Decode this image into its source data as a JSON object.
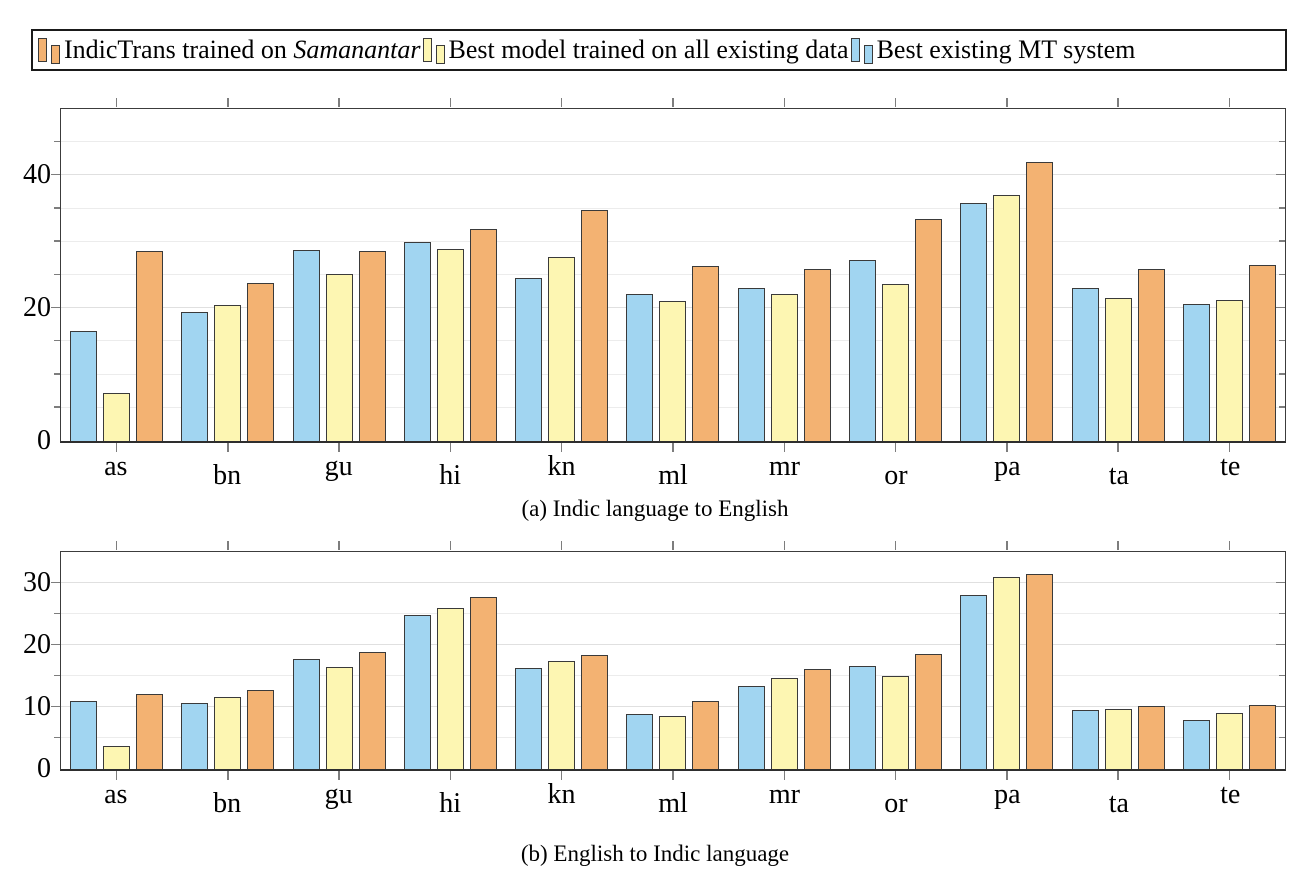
{
  "figure": {
    "legend": {
      "items": [
        {
          "label_prefix": "IndicTrans trained on ",
          "label_italic": "Samanantar",
          "color_key": "indictrans"
        },
        {
          "label": "Best model trained on all existing data",
          "color_key": "best_existing_data"
        },
        {
          "label": "Best existing MT system",
          "color_key": "best_mt"
        }
      ]
    }
  },
  "colors": {
    "indictrans": "#F3B272",
    "best_existing_data": "#FDF6B2",
    "best_mt": "#A1D5F1",
    "bar_border": "#3a3a3a",
    "grid_minor": "#ececec",
    "grid_major": "#e0e0e0",
    "frame": "#3c3c3c"
  },
  "chart_data": [
    {
      "type": "bar",
      "caption": "(a) Indic language to English",
      "categories": [
        "as",
        "bn",
        "gu",
        "hi",
        "kn",
        "ml",
        "mr",
        "or",
        "pa",
        "ta",
        "te"
      ],
      "series": [
        {
          "name": "Best existing MT system",
          "color_key": "best_mt",
          "values": [
            16.6,
            19.4,
            28.7,
            30.0,
            24.5,
            22.2,
            23.0,
            27.3,
            35.8,
            23.1,
            20.7
          ]
        },
        {
          "name": "Best model trained on all existing data",
          "color_key": "best_existing_data",
          "values": [
            7.3,
            20.5,
            25.1,
            28.9,
            27.7,
            21.1,
            22.1,
            23.6,
            37.0,
            21.6,
            21.3
          ]
        },
        {
          "name": "IndicTrans trained on Samanantar",
          "color_key": "indictrans",
          "values": [
            28.6,
            23.8,
            28.6,
            31.9,
            34.8,
            26.4,
            25.9,
            33.4,
            42.0,
            25.9,
            26.5
          ]
        }
      ],
      "ylabel": "",
      "xlabel": "",
      "ylim": [
        0,
        50
      ],
      "ytick_major": [
        0,
        20,
        40
      ],
      "minor_step": 5,
      "grid": true,
      "legend_position": "top"
    },
    {
      "type": "bar",
      "caption": "(b) English to Indic language",
      "categories": [
        "as",
        "bn",
        "gu",
        "hi",
        "kn",
        "ml",
        "mr",
        "or",
        "pa",
        "ta",
        "te"
      ],
      "series": [
        {
          "name": "Best existing MT system",
          "color_key": "best_mt",
          "values": [
            10.9,
            10.6,
            17.8,
            24.9,
            16.3,
            8.8,
            13.4,
            16.6,
            28.1,
            9.5,
            7.9
          ]
        },
        {
          "name": "Best model trained on all existing data",
          "color_key": "best_existing_data",
          "values": [
            3.7,
            11.6,
            16.5,
            26.0,
            17.5,
            8.6,
            14.6,
            15.0,
            30.9,
            9.6,
            9.0
          ]
        },
        {
          "name": "IndicTrans trained on Samanantar",
          "color_key": "indictrans",
          "values": [
            12.1,
            12.7,
            18.8,
            27.7,
            18.4,
            10.9,
            16.1,
            18.6,
            31.5,
            10.2,
            10.4
          ]
        }
      ],
      "ylabel": "",
      "xlabel": "",
      "ylim": [
        0,
        35
      ],
      "ytick_major": [
        0,
        10,
        20,
        30
      ],
      "minor_step": 5,
      "grid": true,
      "legend_position": "top"
    }
  ]
}
